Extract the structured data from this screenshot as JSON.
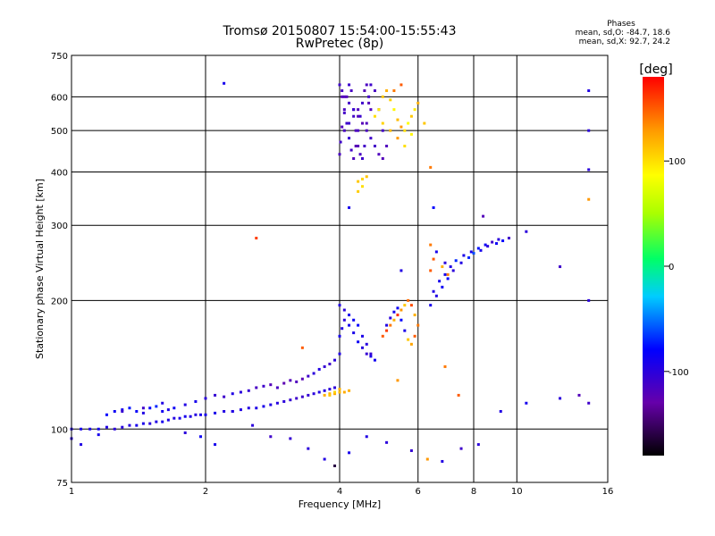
{
  "header": {
    "title_line_1": "Tromsø 20150807 15:54:00-15:55:43",
    "title_line_2": "RwPretec (8p)"
  },
  "phase_stats": {
    "heading": "Phases",
    "line_o": "mean, sd,O: -84.7, 18.6",
    "line_x": "mean, sd,X:  92.7, 24.2"
  },
  "chart_data": {
    "type": "scatter",
    "xlabel": "Frequency [MHz]",
    "ylabel": "Stationary phase Virtual Height [km]",
    "xscale": "log",
    "yscale": "log",
    "xlim": [
      1,
      16
    ],
    "ylim": [
      75,
      750
    ],
    "x_ticks": [
      1,
      2,
      4,
      6,
      8,
      10,
      16
    ],
    "x_tick_labels": [
      "1",
      "2",
      "4",
      "6",
      "8",
      "10",
      "16"
    ],
    "y_ticks": [
      75,
      100,
      200,
      300,
      400,
      500,
      600,
      750
    ],
    "y_tick_labels": [
      "75",
      "100",
      "200",
      "300",
      "400",
      "500",
      "600",
      "750"
    ],
    "x_gridlines": [
      2,
      4,
      6,
      8,
      10
    ],
    "y_gridlines": [
      100,
      200,
      300,
      400,
      500,
      600
    ],
    "colorbar": {
      "label": "[deg]",
      "range": [
        -180,
        180
      ],
      "ticks": [
        100,
        0,
        -100
      ],
      "tick_labels": [
        "100",
        "0",
        "-100"
      ]
    },
    "series": [
      {
        "x": [
          1.0,
          1.05,
          1.1,
          1.15,
          1.2,
          1.25,
          1.3,
          1.35,
          1.4,
          1.45,
          1.5,
          1.55,
          1.6,
          1.65,
          1.7,
          1.75,
          1.8,
          1.85,
          1.9,
          1.95,
          2.0,
          2.1,
          2.2,
          2.3,
          2.4,
          2.5,
          2.6,
          2.7,
          2.8,
          2.9,
          3.0,
          3.1,
          3.2,
          3.3,
          3.4,
          3.5,
          3.6,
          3.7,
          3.8,
          3.9
        ],
        "y": [
          100,
          100,
          100,
          100,
          101,
          100,
          101,
          102,
          102,
          103,
          103,
          104,
          104,
          105,
          106,
          106,
          107,
          107,
          108,
          108,
          108,
          109,
          110,
          110,
          111,
          112,
          112,
          113,
          114,
          115,
          116,
          117,
          118,
          119,
          120,
          121,
          122,
          123,
          124,
          125
        ],
        "phase": [
          -95,
          -90,
          -92,
          -88,
          -95,
          -100,
          -98,
          -97,
          -90,
          -92,
          -100,
          -95,
          -90,
          -93,
          -96,
          -92,
          -90,
          -95,
          -97,
          -92,
          -90,
          -92,
          -95,
          -93,
          -95,
          -96,
          -94,
          -92,
          -95,
          -97,
          -100,
          -105,
          -110,
          -108,
          -105,
          -100,
          -95,
          -97,
          -100,
          -102
        ]
      },
      {
        "x": [
          1.2,
          1.25,
          1.3,
          1.35,
          1.4,
          1.45,
          1.5,
          1.55,
          1.6,
          1.65,
          1.7,
          1.8,
          1.9,
          2.0,
          2.1,
          2.2,
          2.3,
          2.4,
          2.5,
          2.6,
          2.7,
          2.8,
          2.9,
          3.0,
          3.1,
          3.2,
          3.3,
          3.4,
          3.5,
          3.6,
          3.7,
          3.8,
          3.9,
          4.0
        ],
        "y": [
          108,
          110,
          111,
          112,
          110,
          109,
          112,
          113,
          110,
          111,
          112,
          114,
          116,
          118,
          120,
          119,
          121,
          122,
          123,
          125,
          126,
          127,
          125,
          128,
          130,
          129,
          131,
          133,
          135,
          138,
          140,
          142,
          145,
          150
        ],
        "phase": [
          -80,
          -85,
          -90,
          -75,
          -82,
          -95,
          -80,
          -70,
          -88,
          -92,
          -85,
          -95,
          -90,
          -100,
          -105,
          -110,
          -95,
          -100,
          -105,
          -115,
          -110,
          -120,
          -115,
          -125,
          -120,
          -118,
          -122,
          -110,
          -100,
          -95,
          -105,
          -110,
          -100,
          -95
        ]
      },
      {
        "x": [
          3.7,
          3.8,
          3.9,
          4.0,
          4.1,
          4.2,
          3.8,
          3.9,
          4.0
        ],
        "y": [
          120,
          121,
          121,
          122,
          122,
          123,
          120,
          122,
          124
        ],
        "phase": [
          120,
          118,
          125,
          115,
          122,
          120,
          110,
          105,
          118
        ]
      },
      {
        "x": [
          4.0,
          4.02,
          4.05,
          4.1,
          4.15,
          4.2,
          4.25,
          4.3,
          4.35,
          4.4,
          4.45,
          4.5,
          4.55,
          4.6,
          4.65,
          4.7,
          4.8,
          4.9,
          5.0,
          5.1,
          4.05,
          4.1,
          4.15,
          4.2,
          4.25,
          4.3,
          4.35,
          4.4,
          4.45,
          4.5,
          4.55,
          4.6,
          4.65,
          4.7,
          4.0,
          4.05,
          4.1,
          4.2,
          4.3,
          4.4,
          4.5,
          4.6,
          4.7,
          4.8,
          4.9,
          5.0,
          4.1,
          4.2,
          4.3,
          4.4
        ],
        "y": [
          440,
          470,
          510,
          550,
          600,
          640,
          620,
          560,
          500,
          460,
          440,
          430,
          460,
          520,
          580,
          640,
          620,
          560,
          500,
          460,
          600,
          560,
          520,
          480,
          450,
          430,
          460,
          500,
          540,
          580,
          620,
          640,
          600,
          560,
          640,
          620,
          600,
          580,
          560,
          540,
          520,
          500,
          480,
          460,
          440,
          430,
          500,
          520,
          540,
          560
        ],
        "phase": [
          -115,
          -110,
          -118,
          -112,
          -120,
          -108,
          -115,
          -110,
          -118,
          -122,
          -115,
          -110,
          -112,
          -118,
          -120,
          -110,
          -115,
          -108,
          -112,
          -118,
          -120,
          -115,
          -110,
          -105,
          -112,
          -118,
          -122,
          -115,
          -108,
          -110,
          -120,
          -116,
          -112,
          -118,
          -110,
          -115,
          -120,
          -112,
          -108,
          -118,
          -122,
          -115,
          -110,
          -112,
          -118,
          -120,
          -115,
          -108,
          -112,
          -118
        ]
      },
      {
        "x": [
          4.8,
          4.9,
          5.0,
          5.1,
          5.2,
          5.3,
          5.4,
          5.5,
          5.6,
          5.7,
          5.8,
          5.9,
          6.0,
          5.0,
          5.2,
          5.4,
          5.6,
          5.8,
          5.3,
          5.5
        ],
        "y": [
          540,
          560,
          600,
          620,
          590,
          560,
          530,
          510,
          500,
          520,
          540,
          560,
          580,
          520,
          500,
          480,
          460,
          490,
          620,
          640
        ],
        "phase": [
          100,
          95,
          110,
          120,
          105,
          90,
          115,
          130,
          100,
          85,
          110,
          95,
          120,
          105,
          115,
          130,
          100,
          90,
          140,
          150
        ]
      },
      {
        "x": [
          4.4,
          4.5,
          4.6,
          4.5,
          4.4
        ],
        "y": [
          380,
          385,
          390,
          370,
          360
        ],
        "phase": [
          110,
          105,
          112,
          100,
          108
        ]
      },
      {
        "x": [
          4.0,
          4.05,
          4.1,
          4.2,
          4.3,
          4.4,
          4.5,
          4.6,
          4.7,
          4.8,
          4.0,
          4.1,
          4.2,
          4.3,
          4.4,
          4.5,
          4.6,
          4.7
        ],
        "y": [
          165,
          172,
          180,
          175,
          168,
          160,
          155,
          150,
          148,
          145,
          195,
          190,
          185,
          180,
          175,
          165,
          158,
          150
        ],
        "phase": [
          -90,
          -95,
          -100,
          -88,
          -92,
          -85,
          -98,
          -105,
          -92,
          -88,
          -95,
          -100,
          -90,
          -85,
          -80,
          -92,
          -98,
          -105
        ]
      },
      {
        "x": [
          5.0,
          5.1,
          5.2,
          5.3,
          5.4,
          5.5,
          5.6,
          5.7,
          5.8,
          5.9,
          5.1,
          5.2,
          5.3,
          5.4,
          5.5,
          5.6,
          5.7,
          5.8,
          5.9,
          6.0
        ],
        "y": [
          165,
          170,
          175,
          180,
          185,
          190,
          195,
          200,
          195,
          185,
          175,
          182,
          188,
          192,
          180,
          170,
          162,
          158,
          165,
          175
        ],
        "phase": [
          150,
          160,
          140,
          120,
          165,
          130,
          110,
          145,
          155,
          120,
          -95,
          -100,
          -90,
          -85,
          -80,
          -92,
          110,
          125,
          150,
          140
        ]
      },
      {
        "x": [
          6.4,
          6.6,
          6.8,
          7.0,
          7.2,
          7.5,
          7.8,
          8.0,
          8.3,
          8.6,
          9.0,
          9.3,
          9.6,
          6.5,
          6.7,
          6.9,
          7.1,
          7.3,
          7.6,
          7.9,
          8.2,
          8.5,
          8.8,
          9.1
        ],
        "y": [
          195,
          205,
          215,
          225,
          235,
          245,
          252,
          258,
          262,
          268,
          272,
          276,
          280,
          210,
          222,
          230,
          240,
          248,
          255,
          260,
          265,
          270,
          274,
          278
        ],
        "phase": [
          -90,
          -95,
          -85,
          -80,
          -100,
          -95,
          -70,
          -60,
          -90,
          -100,
          -85,
          -80,
          -110,
          -95,
          -90,
          -88,
          -95,
          -70,
          -92,
          -90,
          -75,
          -85,
          -110,
          -100
        ]
      },
      {
        "x": [
          6.5,
          6.8,
          7.0,
          6.6,
          6.9
        ],
        "y": [
          250,
          240,
          230,
          260,
          245
        ],
        "phase": [
          150,
          120,
          140,
          -90,
          -100
        ]
      },
      {
        "x": [
          1.0,
          1.05,
          1.15,
          1.3,
          1.45,
          1.6,
          1.8,
          1.95,
          2.1,
          2.3,
          2.55,
          2.8,
          3.1,
          3.4,
          3.7,
          3.9,
          4.2,
          4.6,
          5.1,
          5.8,
          6.3,
          6.8,
          7.5,
          8.2,
          9.2,
          10.5,
          12.5,
          13.8,
          2.2,
          2.6,
          3.3,
          5.5,
          6.2,
          6.4,
          6.5,
          8.4,
          10.5,
          12.5,
          14.5,
          14.5,
          14.5,
          14.5,
          14.5,
          14.5,
          6.4,
          6.4,
          5.4,
          6.9,
          7.4,
          4.2
        ],
        "y": [
          95,
          92,
          97,
          110,
          112,
          115,
          98,
          96,
          92,
          110,
          102,
          96,
          95,
          90,
          85,
          82,
          88,
          96,
          93,
          89,
          85,
          84,
          90,
          92,
          110,
          115,
          118,
          120,
          645,
          280,
          155,
          235,
          520,
          410,
          330,
          315,
          290,
          240,
          620,
          500,
          405,
          345,
          200,
          115,
          270,
          235,
          130,
          140,
          120,
          330
        ],
        "phase": [
          -100,
          -95,
          -90,
          -105,
          -110,
          -95,
          -100,
          -85,
          -90,
          -95,
          -100,
          -110,
          -105,
          -100,
          -95,
          -160,
          -90,
          -95,
          -100,
          -105,
          130,
          -95,
          -110,
          -100,
          -95,
          -90,
          -100,
          -120,
          -90,
          160,
          150,
          -95,
          110,
          140,
          -80,
          -120,
          -100,
          -110,
          -95,
          -100,
          -100,
          130,
          -100,
          -110,
          140,
          150,
          130,
          140,
          150,
          -90
        ]
      }
    ]
  }
}
